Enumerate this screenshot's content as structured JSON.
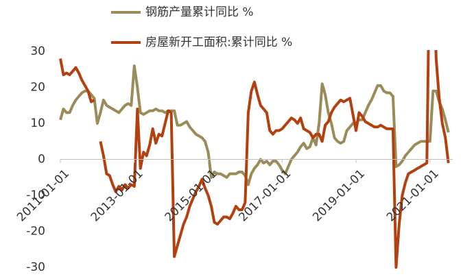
{
  "chart_data": {
    "type": "line",
    "categories": [
      "2011-01-01",
      null,
      null,
      null,
      null,
      null,
      null,
      null,
      null,
      null,
      null,
      null,
      null,
      null,
      null,
      null,
      null,
      null,
      null,
      null,
      null,
      null,
      null,
      null,
      "2013-01-01",
      null,
      null,
      null,
      null,
      null,
      null,
      null,
      null,
      null,
      null,
      null,
      null,
      null,
      null,
      null,
      null,
      null,
      null,
      null,
      null,
      null,
      null,
      null,
      "2015-01-01",
      null,
      null,
      null,
      null,
      null,
      null,
      null,
      null,
      null,
      null,
      null,
      null,
      null,
      null,
      null,
      null,
      null,
      null,
      null,
      null,
      null,
      null,
      null,
      "2017-01-01",
      null,
      null,
      null,
      null,
      null,
      null,
      null,
      null,
      null,
      null,
      null,
      null,
      null,
      null,
      null,
      null,
      null,
      null,
      null,
      null,
      null,
      null,
      null,
      "2019-01-01",
      null,
      null,
      null,
      null,
      null,
      null,
      null,
      null,
      null,
      null,
      null,
      null,
      null,
      null,
      null,
      null,
      null,
      null,
      null,
      null,
      null,
      null,
      null,
      "2021-01-01",
      null,
      null,
      null,
      null,
      null,
      null
    ],
    "series": [
      {
        "name": "钢筋产量累计同比 %",
        "color": "#9a8c58",
        "values": [
          11,
          14,
          13,
          13,
          15,
          16.5,
          17.5,
          18.5,
          19,
          19,
          18,
          17,
          10,
          13,
          16.5,
          15,
          14.5,
          14,
          13.5,
          13,
          14,
          15,
          15.5,
          15,
          26,
          20,
          13,
          12.5,
          13,
          13.5,
          13.5,
          14,
          13.5,
          13.5,
          13,
          13.5,
          13.5,
          13.5,
          9.5,
          9.5,
          10,
          10.5,
          9,
          8,
          7,
          6.5,
          6,
          5,
          2,
          -5,
          -3.5,
          -4,
          -4,
          -4.5,
          -5,
          -4,
          -4,
          -4,
          -3.5,
          -3.5,
          -4.5,
          -7,
          -4,
          -2.5,
          -1.5,
          0,
          -1,
          -0.5,
          -1.5,
          -0.5,
          -0.5,
          -1.5,
          -3,
          -4,
          -2,
          0,
          1,
          2,
          3.5,
          4.5,
          3,
          3.5,
          6,
          4,
          10,
          21,
          18,
          13,
          10,
          6,
          5,
          4.5,
          5,
          8,
          9,
          10,
          10,
          11,
          11,
          13,
          15,
          16.5,
          18.5,
          20.5,
          20.5,
          19,
          18.5,
          18.5,
          17.5,
          -2,
          -1.5,
          -0.5,
          1,
          2,
          3,
          4,
          4.5,
          5,
          5,
          5,
          5,
          19,
          19,
          16,
          14,
          11,
          7.5
        ]
      },
      {
        "name": "房屋新开工面积:累计同比 %",
        "color": "#b4400f",
        "values": [
          28,
          23.5,
          24,
          23.5,
          24.5,
          25.5,
          24,
          22,
          20.5,
          19,
          16,
          16.5,
          null,
          5,
          1,
          -4,
          -4.5,
          -7,
          -9,
          -7.5,
          -8.5,
          -7,
          -8,
          -7,
          -7.5,
          14,
          -2.5,
          2,
          1,
          4,
          8.5,
          4.5,
          7,
          6.5,
          10,
          13.5,
          13,
          -27,
          -24,
          -21,
          -18,
          -16,
          -13,
          -11,
          -9,
          -7.5,
          -5.5,
          -8,
          -10,
          -13,
          -17.5,
          -18,
          -17,
          -16,
          -16,
          -16.5,
          -15,
          -13,
          -14,
          -14,
          -12,
          13,
          19,
          21.5,
          18,
          15,
          14,
          13,
          8,
          7,
          8,
          8,
          8.5,
          9.5,
          10.5,
          11.5,
          11,
          10,
          11.5,
          8.5,
          8,
          7.5,
          6,
          7,
          7,
          5,
          9.5,
          10.5,
          13,
          14.5,
          15.5,
          16.5,
          16,
          16.5,
          17,
          12.5,
          8,
          13,
          12,
          10.5,
          10,
          9.5,
          9,
          9,
          9.5,
          9,
          8.5,
          8.5,
          8.5,
          -30,
          -18,
          -10,
          -6.5,
          -4,
          -3.5,
          -3,
          -2.5,
          -2,
          -1.5,
          -1,
          64,
          60,
          28,
          17,
          10,
          6,
          -1
        ]
      }
    ],
    "ylim": [
      -30,
      30
    ],
    "yticks": [
      -30,
      -20,
      -10,
      0,
      10,
      20,
      30
    ],
    "grid": false
  }
}
